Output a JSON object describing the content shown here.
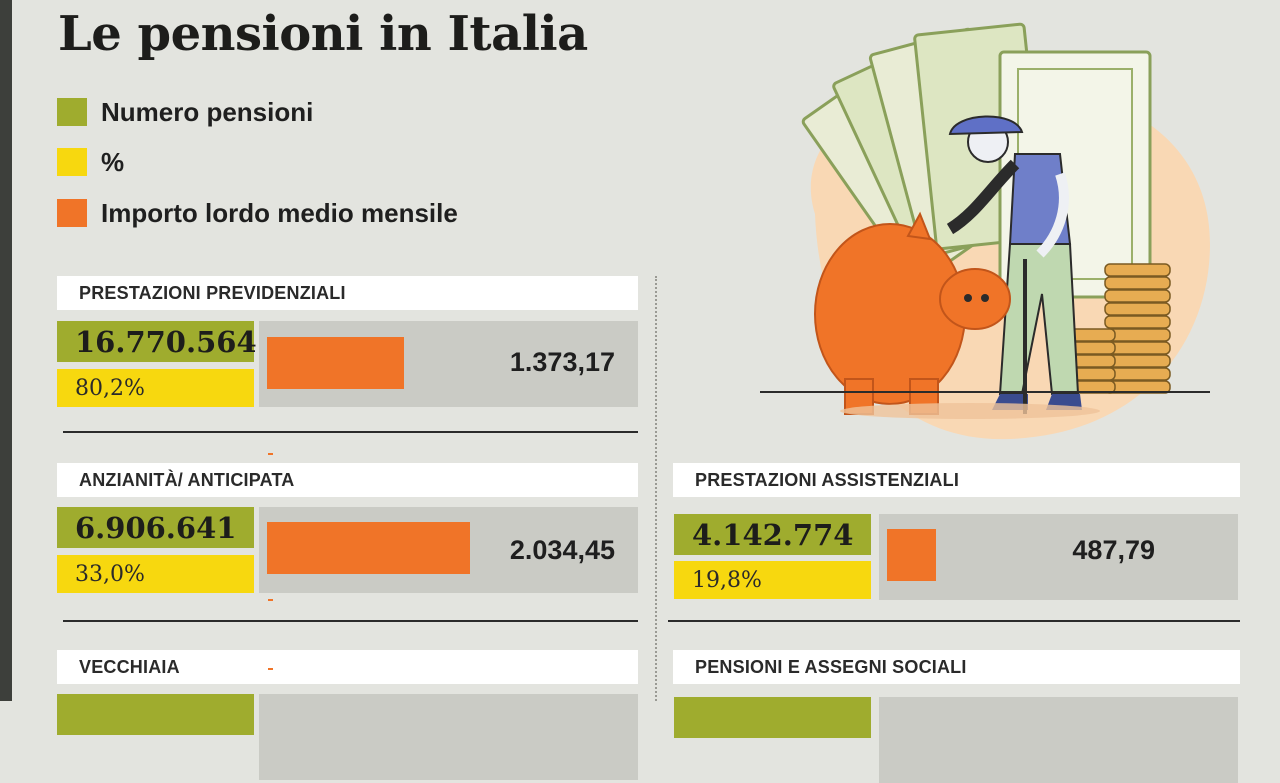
{
  "title": "Le pensioni in Italia",
  "legend": [
    {
      "label": "Numero pensioni",
      "color": "#9fac2e"
    },
    {
      "label": "%",
      "color": "#f7d80f"
    },
    {
      "label": "Importo lordo medio mensile",
      "color": "#f07428"
    }
  ],
  "chart_data": {
    "type": "bar",
    "categories": [
      "PRESTAZIONI PREVIDENZIALI",
      "ANZIANITÀ/ ANTICIPATA",
      "PRESTAZIONI ASSISTENZIALI"
    ],
    "values": [
      1373.17,
      2034.45,
      487.79
    ],
    "series": [
      {
        "name": "Numero pensioni",
        "values": [
          16770564,
          6906641,
          4142774
        ],
        "labels": [
          "16.770.564",
          "6.906.641",
          "4.142.774"
        ]
      },
      {
        "name": "%",
        "values": [
          80.2,
          33.0,
          19.8
        ],
        "labels": [
          "80,2%",
          "33,0%",
          "19,8%"
        ]
      },
      {
        "name": "Importo lordo medio mensile",
        "values": [
          1373.17,
          2034.45,
          487.79
        ],
        "labels": [
          "1.373,17",
          "2.034,45",
          "487,79"
        ]
      }
    ],
    "title": "Le pensioni in Italia",
    "xlabel": "",
    "ylabel": "",
    "partially_visible_categories": [
      "VECCHIAIA",
      "PENSIONI E ASSEGNI SOCIALI"
    ]
  },
  "sections": {
    "previdenziali": {
      "header": "PRESTAZIONI PREVIDENZIALI",
      "number": "16.770.564",
      "percent": "80,2%",
      "amount": "1.373,17",
      "amount_value": 1373.17
    },
    "anzianita": {
      "header": "ANZIANITÀ/ ANTICIPATA",
      "number": "6.906.641",
      "percent": "33,0%",
      "amount": "2.034,45",
      "amount_value": 2034.45
    },
    "assistenziali": {
      "header": "PRESTAZIONI ASSISTENZIALI",
      "number": "4.142.774",
      "percent": "19,8%",
      "amount": "487,79",
      "amount_value": 487.79
    },
    "vecchiaia": {
      "header": "VECCHIAIA"
    },
    "sociali": {
      "header": "PENSIONI E ASSEGNI SOCIALI"
    }
  },
  "colors": {
    "green": "#9fac2e",
    "yellow": "#f7d80f",
    "orange": "#f07428",
    "panel": "#cacbc5",
    "background": "#e3e4df"
  },
  "illustration": "elderly-man-piggy-bank-icon"
}
